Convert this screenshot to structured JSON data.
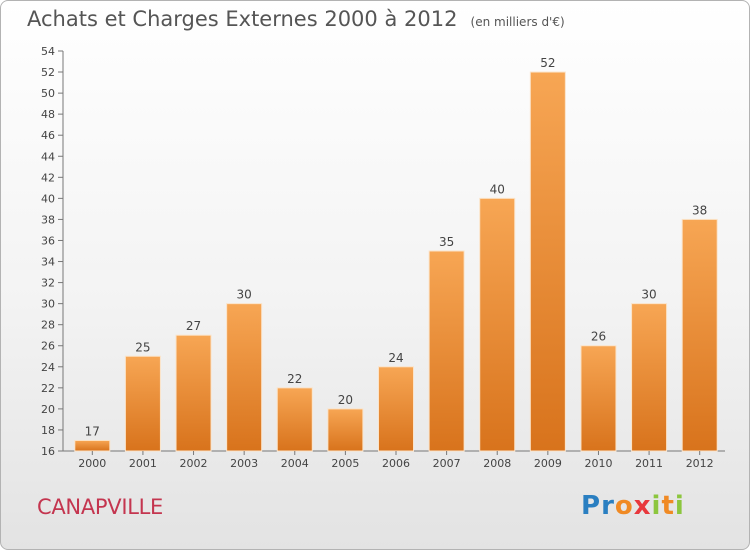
{
  "header": {
    "title": "Achats et Charges Externes 2000 à 2012",
    "unit": "(en milliers d'€)"
  },
  "footer": {
    "place": "CANAPVILLE",
    "brand_letters": [
      {
        "ch": "P",
        "color": "#2a7fc1"
      },
      {
        "ch": "r",
        "color": "#2a7fc1"
      },
      {
        "ch": "o",
        "color": "#f08a24"
      },
      {
        "ch": "x",
        "color": "#e8383d"
      },
      {
        "ch": "i",
        "color": "#8cc63e"
      },
      {
        "ch": "t",
        "color": "#f08a24"
      },
      {
        "ch": "i",
        "color": "#8cc63e"
      }
    ]
  },
  "chart_data": {
    "type": "bar",
    "categories": [
      "2000",
      "2001",
      "2002",
      "2003",
      "2004",
      "2005",
      "2006",
      "2007",
      "2008",
      "2009",
      "2010",
      "2011",
      "2012"
    ],
    "values": [
      17,
      25,
      27,
      30,
      22,
      20,
      24,
      35,
      40,
      52,
      26,
      30,
      38
    ],
    "ylim": [
      16,
      54
    ],
    "ytick_step": 2,
    "grid": false,
    "bar_color_light": "#f7a654",
    "bar_color_dark": "#d8731c"
  }
}
